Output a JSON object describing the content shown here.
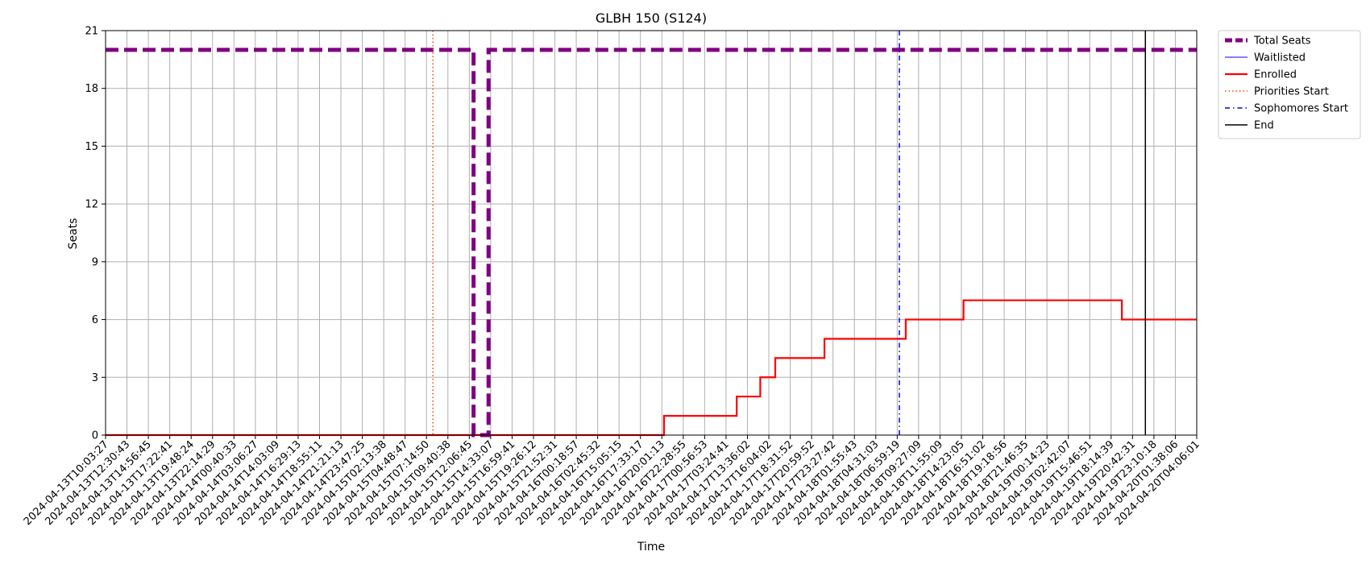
{
  "chart_data": {
    "type": "line",
    "title": "GLBH 150 (S124)",
    "xlabel": "Time",
    "ylabel": "Seats",
    "ylim": [
      0,
      21
    ],
    "yticks": [
      0,
      3,
      6,
      9,
      12,
      15,
      18,
      21
    ],
    "grid": true,
    "legend_position": "outside-top-right",
    "x_tick_labels": [
      "2024-04-13T10:03:27",
      "2024-04-13T12:30:43",
      "2024-04-13T14:56:45",
      "2024-04-13T17:22:41",
      "2024-04-13T19:48:24",
      "2024-04-13T22:14:29",
      "2024-04-14T00:40:33",
      "2024-04-14T03:06:27",
      "2024-04-14T14:03:09",
      "2024-04-14T16:29:13",
      "2024-04-14T18:55:11",
      "2024-04-14T21:21:13",
      "2024-04-14T23:47:25",
      "2024-04-15T02:13:38",
      "2024-04-15T04:48:47",
      "2024-04-15T07:14:50",
      "2024-04-15T09:40:38",
      "2024-04-15T12:06:45",
      "2024-04-15T14:33:07",
      "2024-04-15T16:59:41",
      "2024-04-15T19:26:12",
      "2024-04-15T21:52:31",
      "2024-04-16T00:18:57",
      "2024-04-16T02:45:32",
      "2024-04-16T15:05:15",
      "2024-04-16T17:33:17",
      "2024-04-16T20:01:13",
      "2024-04-16T22:28:55",
      "2024-04-17T00:56:53",
      "2024-04-17T03:24:41",
      "2024-04-17T13:36:02",
      "2024-04-17T16:04:02",
      "2024-04-17T18:31:52",
      "2024-04-17T20:59:52",
      "2024-04-17T23:27:42",
      "2024-04-18T01:55:43",
      "2024-04-18T04:31:03",
      "2024-04-18T06:59:19",
      "2024-04-18T09:27:09",
      "2024-04-18T11:55:09",
      "2024-04-18T14:23:05",
      "2024-04-18T16:51:02",
      "2024-04-18T19:18:56",
      "2024-04-18T21:46:35",
      "2024-04-19T00:14:23",
      "2024-04-19T02:42:07",
      "2024-04-19T15:46:51",
      "2024-04-19T18:14:39",
      "2024-04-19T20:42:31",
      "2024-04-19T23:10:18",
      "2024-04-20T01:38:06",
      "2024-04-20T04:06:01"
    ],
    "x_range_ticks": [
      0,
      51
    ],
    "series": [
      {
        "name": "Total Seats",
        "color": "#800080",
        "style": "dashed",
        "points": [
          [
            0,
            20
          ],
          [
            17.2,
            20
          ],
          [
            17.2,
            0
          ],
          [
            17.9,
            0
          ],
          [
            17.9,
            20
          ],
          [
            51,
            20
          ]
        ]
      },
      {
        "name": "Waitlisted",
        "color": "#0000ff",
        "style": "solid-thin",
        "points": [
          [
            0,
            0
          ],
          [
            51,
            0
          ]
        ]
      },
      {
        "name": "Enrolled",
        "color": "#ff0000",
        "style": "solid",
        "points": [
          [
            0,
            0
          ],
          [
            26.1,
            0
          ],
          [
            26.1,
            1
          ],
          [
            29.5,
            1
          ],
          [
            29.5,
            2
          ],
          [
            30.6,
            2
          ],
          [
            30.6,
            3
          ],
          [
            31.3,
            3
          ],
          [
            31.3,
            4
          ],
          [
            33.6,
            4
          ],
          [
            33.6,
            5
          ],
          [
            37.4,
            5
          ],
          [
            37.4,
            6
          ],
          [
            40.1,
            6
          ],
          [
            40.1,
            7
          ],
          [
            47.5,
            7
          ],
          [
            47.5,
            6
          ],
          [
            51,
            6
          ]
        ]
      },
      {
        "name": "Priorities Start",
        "color": "#ff4500",
        "style": "dotted",
        "x": 15.3
      },
      {
        "name": "Sophomores Start",
        "color": "#0000ff",
        "style": "dashdot",
        "x": 37.1
      },
      {
        "name": "End",
        "color": "#000000",
        "style": "solid",
        "x": 48.6
      }
    ]
  }
}
